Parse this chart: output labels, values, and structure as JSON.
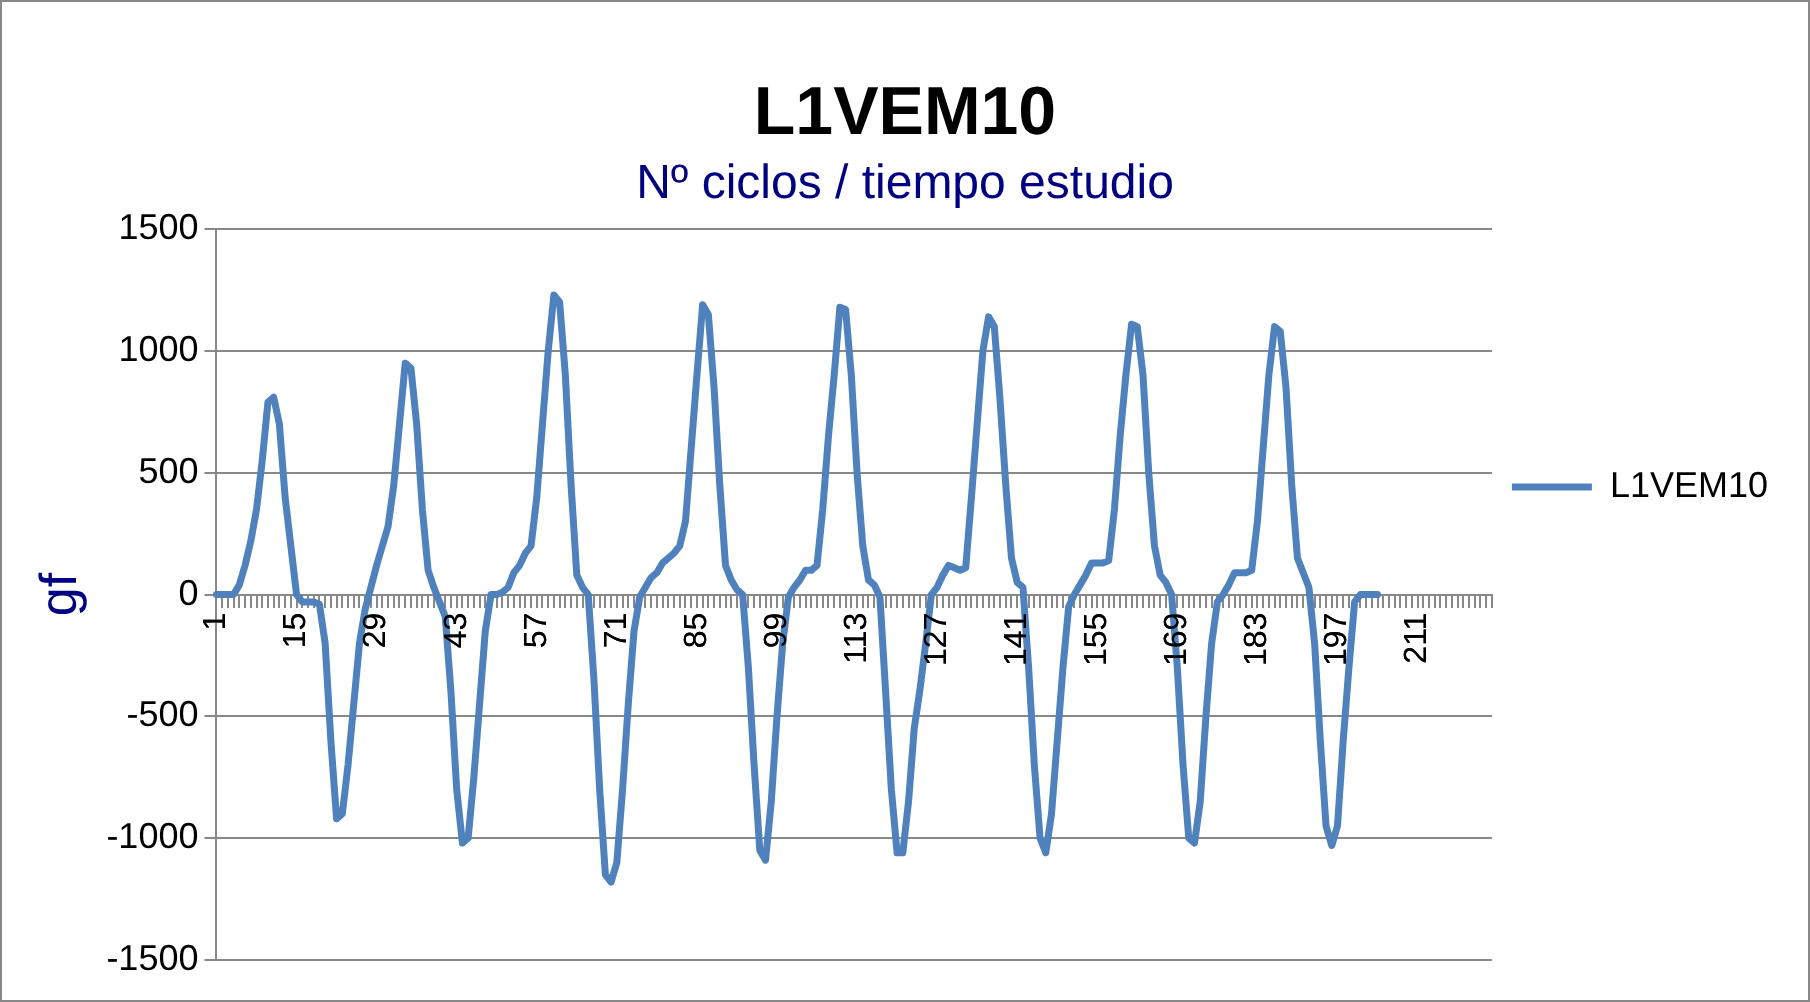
{
  "chart_data": {
    "type": "line",
    "title": "L1VEM10",
    "subtitle": "Nº ciclos / tiempo estudio",
    "ylabel": "gf",
    "categories": [
      "1",
      null,
      null,
      null,
      null,
      null,
      null,
      null,
      null,
      null,
      null,
      null,
      null,
      null,
      "15",
      null,
      null,
      null,
      null,
      null,
      null,
      null,
      null,
      null,
      null,
      null,
      null,
      null,
      "29",
      null,
      null,
      null,
      null,
      null,
      null,
      null,
      null,
      null,
      null,
      null,
      null,
      null,
      "43",
      null,
      null,
      null,
      null,
      null,
      null,
      null,
      null,
      null,
      null,
      null,
      null,
      null,
      "57",
      null,
      null,
      null,
      null,
      null,
      null,
      null,
      null,
      null,
      null,
      null,
      null,
      null,
      "71",
      null,
      null,
      null,
      null,
      null,
      null,
      null,
      null,
      null,
      null,
      null,
      null,
      null,
      "85",
      null,
      null,
      null,
      null,
      null,
      null,
      null,
      null,
      null,
      null,
      null,
      null,
      null,
      "99",
      null,
      null,
      null,
      null,
      null,
      null,
      null,
      null,
      null,
      null,
      null,
      null,
      null,
      "113",
      null,
      null,
      null,
      null,
      null,
      null,
      null,
      null,
      null,
      null,
      null,
      null,
      null,
      "127",
      null,
      null,
      null,
      null,
      null,
      null,
      null,
      null,
      null,
      null,
      null,
      null,
      null,
      "141",
      null,
      null,
      null,
      null,
      null,
      null,
      null,
      null,
      null,
      null,
      null,
      null,
      null,
      "155",
      null,
      null,
      null,
      null,
      null,
      null,
      null,
      null,
      null,
      null,
      null,
      null,
      null,
      "169",
      null,
      null,
      null,
      null,
      null,
      null,
      null,
      null,
      null,
      null,
      null,
      null,
      null,
      "183",
      null,
      null,
      null,
      null,
      null,
      null,
      null,
      null,
      null,
      null,
      null,
      null,
      null,
      "197",
      null,
      null,
      null,
      null,
      null,
      null,
      null,
      null,
      null,
      null,
      null,
      null,
      null,
      "211",
      null,
      null,
      null,
      null,
      null,
      null,
      null,
      null,
      null,
      null,
      null,
      null,
      null
    ],
    "series": [
      {
        "name": "L1VEM10",
        "color": "#4f81bd",
        "values": [
          0,
          0,
          0,
          0,
          40,
          120,
          220,
          350,
          550,
          790,
          810,
          700,
          400,
          200,
          0,
          -30,
          -30,
          -30,
          -40,
          -200,
          -600,
          -920,
          -900,
          -700,
          -450,
          -200,
          -60,
          30,
          120,
          200,
          280,
          450,
          700,
          950,
          930,
          700,
          350,
          100,
          30,
          -30,
          -90,
          -400,
          -800,
          -1020,
          -1000,
          -750,
          -450,
          -150,
          0,
          0,
          10,
          30,
          90,
          120,
          170,
          200,
          400,
          700,
          1000,
          1230,
          1200,
          900,
          450,
          80,
          30,
          0,
          -350,
          -800,
          -1150,
          -1180,
          -1100,
          -800,
          -450,
          -150,
          -10,
          30,
          70,
          90,
          130,
          150,
          170,
          200,
          300,
          600,
          900,
          1190,
          1150,
          850,
          450,
          120,
          60,
          20,
          0,
          -300,
          -700,
          -1050,
          -1090,
          -850,
          -500,
          -200,
          -10,
          30,
          60,
          100,
          100,
          120,
          350,
          650,
          900,
          1180,
          1170,
          900,
          500,
          200,
          60,
          40,
          -10,
          -400,
          -800,
          -1060,
          -1060,
          -850,
          -550,
          -390,
          -200,
          0,
          30,
          80,
          120,
          110,
          100,
          110,
          400,
          700,
          1000,
          1140,
          1100,
          800,
          450,
          150,
          50,
          30,
          -300,
          -700,
          -1000,
          -1060,
          -900,
          -600,
          -300,
          -50,
          0,
          40,
          80,
          130,
          130,
          130,
          140,
          350,
          650,
          900,
          1110,
          1100,
          900,
          500,
          200,
          80,
          50,
          0,
          -300,
          -700,
          -1000,
          -1020,
          -850,
          -500,
          -200,
          -30,
          0,
          40,
          90,
          90,
          90,
          100,
          300,
          600,
          900,
          1100,
          1080,
          850,
          450,
          150,
          90,
          30,
          -200,
          -600,
          -950,
          -1030,
          -950,
          -600,
          -300,
          -30,
          0,
          0,
          0,
          0,
          null,
          null,
          null,
          null,
          null,
          null,
          null,
          null,
          null,
          null,
          null,
          null,
          null,
          null,
          null,
          null,
          null,
          null,
          null,
          null
        ]
      }
    ],
    "ylim": [
      -1500,
      1500
    ],
    "yticks": [
      -1500,
      -1000,
      -500,
      0,
      500,
      1000,
      1500
    ],
    "grid": "y",
    "legend": "right",
    "marker": "none",
    "line_style": "solid"
  }
}
